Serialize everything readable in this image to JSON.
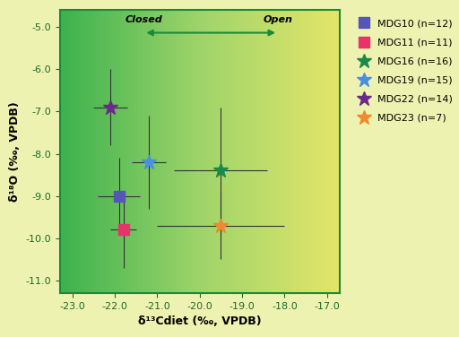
{
  "chart_data": {
    "type": "scatter",
    "x_label": "δ¹³Cdiet (‰, VPDB)",
    "y_label": "δ¹⁸O (‰, VPDB)",
    "annotations": [
      "Closed",
      "Open"
    ],
    "xlim": [
      -23.3,
      -16.7
    ],
    "ylim": [
      -11.3,
      -4.6
    ],
    "xticks": [
      {
        "value": -23,
        "label": "-23.0"
      },
      {
        "value": -22,
        "label": "-22.0"
      },
      {
        "value": -21,
        "label": "-21.0"
      },
      {
        "value": -20,
        "label": "-20.0"
      },
      {
        "value": -19,
        "label": "-19.0"
      },
      {
        "value": -18,
        "label": "-18.0"
      },
      {
        "value": -17,
        "label": "-17.0"
      }
    ],
    "yticks": [
      {
        "value": -11,
        "label": "-11.0"
      },
      {
        "value": -10,
        "label": "-10.0"
      },
      {
        "value": -9,
        "label": "-9.0"
      },
      {
        "value": -8,
        "label": "-8.0"
      },
      {
        "value": -7,
        "label": "-7.0"
      },
      {
        "value": -6,
        "label": "-6.0"
      },
      {
        "value": -5,
        "label": "-5.0"
      }
    ],
    "legend": "upper left",
    "series": [
      {
        "name": "MDG10 (n=12)",
        "color": "#5656b8",
        "marker": "square",
        "x": -21.9,
        "y": -9.0,
        "xerr": 0.5,
        "yerr": 0.9
      },
      {
        "name": "MDG11 (n=11)",
        "color": "#e8336a",
        "marker": "square",
        "x": -21.8,
        "y": -9.8,
        "xerr": 0.3,
        "yerr": 0.9
      },
      {
        "name": "MDG16 (n=16)",
        "color": "#1a8a4a",
        "marker": "star",
        "x": -19.5,
        "y": -8.4,
        "xerr": 1.1,
        "yerr": 1.5
      },
      {
        "name": "MDG19 (n=15)",
        "color": "#4a8fe0",
        "marker": "star",
        "x": -21.2,
        "y": -8.2,
        "xerr": 0.4,
        "yerr": 1.1
      },
      {
        "name": "MDG22 (n=14)",
        "color": "#6a2a8a",
        "marker": "star",
        "x": -22.1,
        "y": -6.9,
        "xerr": 0.4,
        "yerr": 0.9
      },
      {
        "name": "MDG23 (n=7)",
        "color": "#f08a30",
        "marker": "star",
        "x": -19.5,
        "y": -9.7,
        "xerr": 1.5,
        "yerr": 0.8
      }
    ]
  }
}
